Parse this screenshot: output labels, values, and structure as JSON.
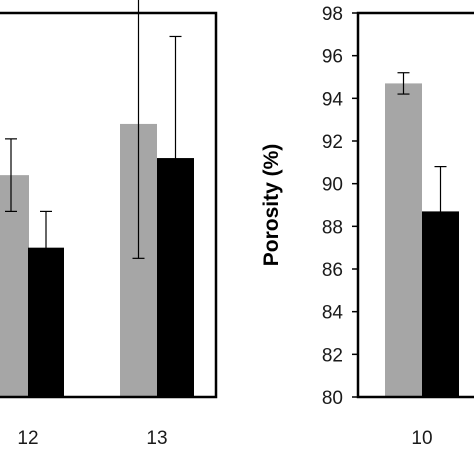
{
  "chart_data": [
    {
      "type": "bar",
      "title": "",
      "xlabel": "",
      "ylabel": "",
      "ylim": [
        80,
        98
      ],
      "categories": [
        "12",
        "13"
      ],
      "series": [
        {
          "color": "#a6a6a6",
          "values": [
            90.4,
            92.8
          ],
          "errors": [
            1.7,
            6.3
          ]
        },
        {
          "color": "#000000",
          "values": [
            87.0,
            91.2
          ],
          "errors": [
            1.7,
            5.7
          ]
        }
      ],
      "grid": false
    },
    {
      "type": "bar",
      "title": "",
      "xlabel": "",
      "ylabel": "Porosity (%)",
      "ylim": [
        80,
        98
      ],
      "yticks": [
        "80",
        "82",
        "84",
        "86",
        "88",
        "90",
        "92",
        "94",
        "96",
        "98"
      ],
      "categories": [
        "10"
      ],
      "series": [
        {
          "color": "#a6a6a6",
          "values": [
            94.7
          ],
          "errors": [
            0.5
          ]
        },
        {
          "color": "#000000",
          "values": [
            88.7
          ],
          "errors": [
            2.1
          ]
        }
      ],
      "grid": false
    }
  ]
}
